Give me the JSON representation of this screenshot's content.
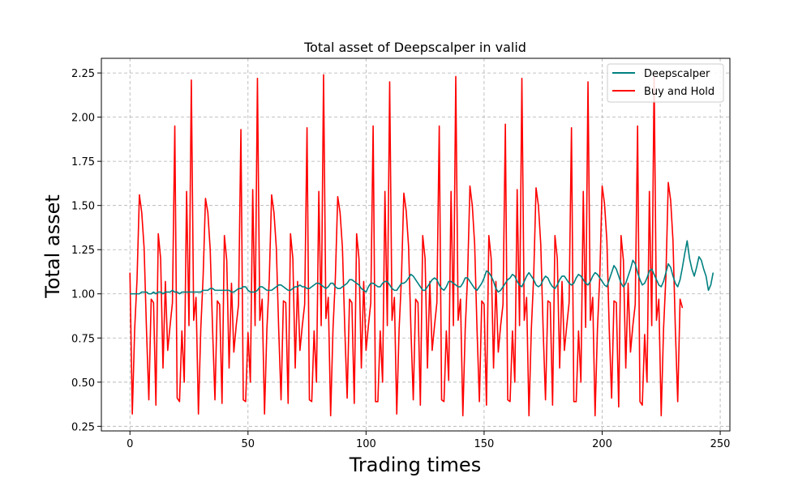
{
  "chart_data": {
    "type": "line",
    "title": "Total asset of Deepscalper in valid",
    "xlabel": "Trading times",
    "ylabel": "Total asset",
    "xlim": [
      -12.1,
      254.1
    ],
    "ylim": [
      0.224,
      2.333
    ],
    "xticks": [
      0,
      50,
      100,
      150,
      200,
      250
    ],
    "yticks": [
      0.25,
      0.5,
      0.75,
      1.0,
      1.25,
      1.5,
      1.75,
      2.0,
      2.25
    ],
    "grid": true,
    "legend_position": "top-right",
    "series": [
      {
        "name": "Deepscalper",
        "color": "#008080",
        "values": [
          1.0,
          1.0,
          1.0,
          1.0,
          1.0,
          1.01,
          1.01,
          1.01,
          1.0,
          1.0,
          1.01,
          1.0,
          1.01,
          1.01,
          1.0,
          1.01,
          1.01,
          1.01,
          1.02,
          1.01,
          1.01,
          1.0,
          1.01,
          1.01,
          1.01,
          1.01,
          1.01,
          1.01,
          1.01,
          1.01,
          1.01,
          1.02,
          1.02,
          1.02,
          1.03,
          1.03,
          1.02,
          1.02,
          1.02,
          1.02,
          1.02,
          1.02,
          1.02,
          1.01,
          1.01,
          1.02,
          1.03,
          1.03,
          1.04,
          1.04,
          1.02,
          1.01,
          1.01,
          1.01,
          1.02,
          1.04,
          1.04,
          1.03,
          1.02,
          1.02,
          1.02,
          1.03,
          1.04,
          1.05,
          1.05,
          1.04,
          1.03,
          1.02,
          1.02,
          1.03,
          1.04,
          1.04,
          1.05,
          1.04,
          1.04,
          1.03,
          1.03,
          1.04,
          1.05,
          1.06,
          1.06,
          1.05,
          1.04,
          1.03,
          1.04,
          1.06,
          1.06,
          1.04,
          1.03,
          1.03,
          1.04,
          1.05,
          1.06,
          1.08,
          1.08,
          1.07,
          1.06,
          1.05,
          1.03,
          1.02,
          1.01,
          1.04,
          1.06,
          1.06,
          1.05,
          1.04,
          1.04,
          1.06,
          1.07,
          1.07,
          1.05,
          1.03,
          1.02,
          1.02,
          1.04,
          1.06,
          1.06,
          1.07,
          1.09,
          1.11,
          1.1,
          1.08,
          1.06,
          1.04,
          1.02,
          1.02,
          1.04,
          1.06,
          1.08,
          1.09,
          1.08,
          1.05,
          1.03,
          1.02,
          1.04,
          1.07,
          1.07,
          1.06,
          1.05,
          1.04,
          1.04,
          1.06,
          1.09,
          1.09,
          1.07,
          1.05,
          1.03,
          1.02,
          1.04,
          1.06,
          1.09,
          1.13,
          1.12,
          1.1,
          1.07,
          1.03,
          1.01,
          1.02,
          1.04,
          1.06,
          1.08,
          1.09,
          1.11,
          1.1,
          1.07,
          1.05,
          1.04,
          1.07,
          1.1,
          1.12,
          1.1,
          1.08,
          1.05,
          1.04,
          1.05,
          1.08,
          1.1,
          1.09,
          1.06,
          1.04,
          1.03,
          1.05,
          1.08,
          1.1,
          1.1,
          1.08,
          1.06,
          1.05,
          1.06,
          1.09,
          1.11,
          1.1,
          1.08,
          1.06,
          1.05,
          1.07,
          1.1,
          1.12,
          1.11,
          1.09,
          1.07,
          1.05,
          1.04,
          1.08,
          1.12,
          1.16,
          1.14,
          1.1,
          1.06,
          1.04,
          1.06,
          1.1,
          1.14,
          1.19,
          1.17,
          1.12,
          1.08,
          1.05,
          1.06,
          1.09,
          1.13,
          1.14,
          1.11,
          1.08,
          1.05,
          1.04,
          1.07,
          1.12,
          1.17,
          1.15,
          1.1,
          1.06,
          1.04,
          1.08,
          1.15,
          1.23,
          1.3,
          1.2,
          1.14,
          1.1,
          1.15,
          1.21,
          1.19,
          1.14,
          1.1,
          1.02,
          1.05,
          1.12
        ]
      },
      {
        "name": "Buy and Hold",
        "color": "#ff0000",
        "values": [
          1.12,
          0.32,
          0.8,
          1.08,
          1.56,
          1.46,
          1.26,
          0.8,
          0.4,
          0.97,
          0.95,
          0.37,
          1.34,
          1.2,
          0.58,
          1.07,
          0.68,
          0.82,
          0.95,
          1.95,
          0.41,
          0.39,
          0.79,
          0.5,
          1.58,
          0.82,
          2.21,
          0.85,
          0.98,
          0.32,
          0.8,
          1.1,
          1.54,
          1.46,
          1.25,
          0.8,
          0.4,
          0.96,
          0.94,
          0.38,
          1.33,
          1.19,
          0.58,
          1.06,
          0.67,
          0.82,
          0.94,
          1.93,
          0.4,
          0.39,
          0.78,
          0.5,
          1.59,
          0.82,
          2.22,
          0.85,
          0.97,
          0.32,
          0.8,
          1.08,
          1.56,
          1.46,
          1.26,
          0.8,
          0.4,
          0.96,
          0.95,
          0.38,
          1.34,
          1.2,
          0.58,
          1.07,
          0.68,
          0.82,
          0.94,
          1.94,
          0.4,
          0.39,
          0.79,
          0.5,
          1.58,
          0.82,
          2.24,
          0.86,
          0.98,
          0.31,
          0.8,
          1.09,
          1.55,
          1.46,
          1.26,
          0.8,
          0.41,
          0.97,
          0.95,
          0.38,
          1.34,
          1.2,
          0.58,
          1.07,
          0.68,
          0.82,
          0.95,
          1.95,
          0.39,
          0.39,
          0.79,
          0.5,
          1.58,
          0.82,
          2.2,
          0.85,
          0.98,
          0.32,
          0.8,
          1.09,
          1.57,
          1.47,
          1.27,
          0.8,
          0.4,
          0.97,
          0.95,
          0.37,
          1.33,
          1.2,
          0.58,
          1.07,
          0.68,
          0.82,
          0.95,
          1.95,
          0.4,
          0.39,
          0.79,
          0.51,
          1.58,
          0.82,
          2.23,
          0.85,
          0.97,
          0.31,
          0.8,
          1.1,
          1.61,
          1.5,
          1.28,
          0.8,
          0.39,
          0.96,
          0.94,
          0.37,
          1.33,
          1.2,
          0.58,
          1.07,
          0.67,
          0.82,
          0.94,
          1.96,
          0.4,
          0.39,
          0.79,
          0.5,
          1.59,
          0.82,
          2.22,
          0.85,
          0.98,
          0.31,
          0.8,
          1.1,
          1.6,
          1.5,
          1.28,
          0.8,
          0.4,
          0.96,
          0.95,
          0.37,
          1.33,
          1.2,
          0.58,
          1.07,
          0.68,
          0.82,
          0.95,
          1.94,
          0.39,
          0.39,
          0.79,
          0.5,
          1.58,
          0.81,
          2.2,
          0.85,
          0.98,
          0.31,
          0.8,
          1.1,
          1.61,
          1.51,
          1.3,
          0.8,
          0.41,
          0.96,
          0.95,
          0.36,
          1.33,
          1.19,
          0.58,
          1.06,
          0.67,
          0.82,
          0.94,
          1.95,
          0.39,
          0.37,
          0.77,
          0.5,
          1.58,
          0.82,
          2.23,
          0.85,
          0.97,
          0.31,
          0.8,
          1.1,
          1.63,
          1.53,
          1.3,
          0.8,
          0.39,
          0.97,
          0.92
        ]
      }
    ]
  }
}
